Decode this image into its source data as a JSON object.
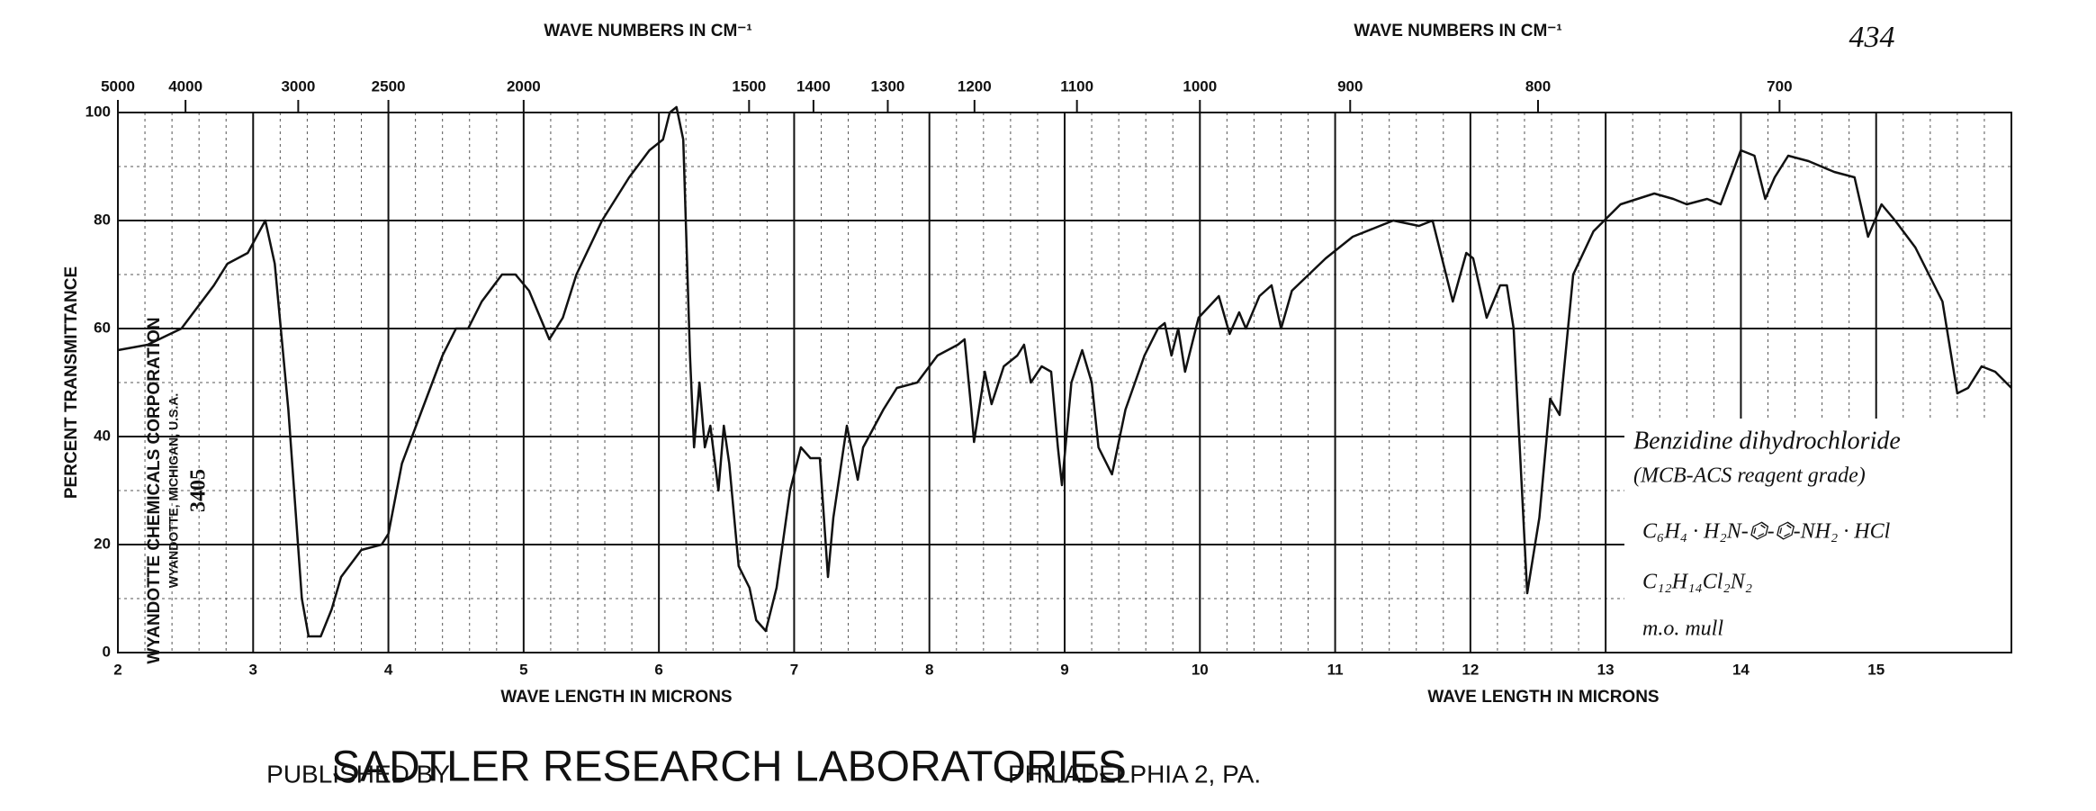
{
  "chart_data": {
    "type": "line",
    "top_axis_label_left": "WAVE NUMBERS IN CM⁻¹",
    "top_axis_label_right": "WAVE NUMBERS IN CM⁻¹",
    "chart_number": "434",
    "y_label": "PERCENT TRANSMITTANCE",
    "x_label_left": "WAVE LENGTH IN MICRONS",
    "x_label_right": "WAVE LENGTH IN MICRONS",
    "source_lines": [
      "WYANDOTTE CHEMICALS CORPORATION",
      "WYANDOTTE, MICHIGAN, U.S.A.",
      "3405"
    ],
    "annotations": [
      "Benzidine dihydrochloride",
      "(MCB-ACS reagent grade)",
      "C₆H₄ · H₂N-⌬-⌬-NH₂ · HCl",
      "C₁₂H₁₄Cl₂N₂",
      "m.o. mull"
    ],
    "footer": {
      "left": "PUBLISHED BY",
      "center": "SADTLER RESEARCH LABORATORIES",
      "right": "PHILADELPHIA 2, PA."
    },
    "color": "#111111",
    "grid": true,
    "xlim": [
      2,
      16
    ],
    "ylim": [
      0,
      100
    ],
    "xticks": [
      2,
      3,
      4,
      5,
      6,
      7,
      8,
      9,
      10,
      11,
      12,
      13,
      14,
      15
    ],
    "yticks": [
      0,
      20,
      40,
      60,
      80,
      100
    ],
    "x2ticks": [
      5000,
      4000,
      3000,
      2500,
      2000,
      1500,
      1400,
      1300,
      1200,
      1100,
      1000,
      900,
      800,
      700
    ],
    "x": [
      2.0,
      2.22,
      2.47,
      2.71,
      2.81,
      2.96,
      3.09,
      3.16,
      3.26,
      3.36,
      3.41,
      3.5,
      3.58,
      3.65,
      3.8,
      3.95,
      4.0,
      4.1,
      4.25,
      4.4,
      4.5,
      4.59,
      4.69,
      4.84,
      4.94,
      5.04,
      5.19,
      5.29,
      5.39,
      5.58,
      5.78,
      5.93,
      6.03,
      6.08,
      6.13,
      6.18,
      6.23,
      6.26,
      6.3,
      6.34,
      6.38,
      6.41,
      6.44,
      6.48,
      6.52,
      6.59,
      6.67,
      6.72,
      6.79,
      6.87,
      6.97,
      7.05,
      7.12,
      7.19,
      7.25,
      7.29,
      7.39,
      7.47,
      7.51,
      7.66,
      7.76,
      7.91,
      8.06,
      8.21,
      8.26,
      8.31,
      8.33,
      8.41,
      8.46,
      8.55,
      8.65,
      8.7,
      8.75,
      8.83,
      8.9,
      8.95,
      8.98,
      9.05,
      9.13,
      9.2,
      9.25,
      9.35,
      9.45,
      9.59,
      9.69,
      9.74,
      9.79,
      9.84,
      9.89,
      9.99,
      10.14,
      10.22,
      10.29,
      10.34,
      10.44,
      10.53,
      10.6,
      10.68,
      10.93,
      11.13,
      11.43,
      11.62,
      11.72,
      11.82,
      11.87,
      11.97,
      12.02,
      12.12,
      12.22,
      12.27,
      12.32,
      12.42,
      12.51,
      12.59,
      12.66,
      12.76,
      12.91,
      13.11,
      13.36,
      13.5,
      13.6,
      13.75,
      13.85,
      14.0,
      14.1,
      14.18,
      14.25,
      14.35,
      14.5,
      14.69,
      14.84,
      14.94,
      15.04,
      15.14,
      15.29,
      15.49,
      15.6,
      15.68,
      15.78,
      15.88,
      16.0
    ],
    "values": [
      56,
      57,
      60,
      68,
      72,
      74,
      80,
      72,
      45,
      10,
      3,
      3,
      8,
      14,
      19,
      20,
      22,
      35,
      45,
      55,
      60,
      60,
      65,
      70,
      70,
      67,
      58,
      62,
      70,
      80,
      88,
      93,
      95,
      100,
      101,
      95,
      55,
      38,
      50,
      38,
      42,
      36,
      30,
      42,
      35,
      16,
      12,
      6,
      4,
      12,
      30,
      38,
      36,
      36,
      14,
      25,
      42,
      32,
      38,
      45,
      49,
      50,
      55,
      57,
      58,
      45,
      39,
      52,
      46,
      53,
      55,
      57,
      50,
      53,
      52,
      38,
      31,
      50,
      56,
      50,
      38,
      33,
      45,
      55,
      60,
      61,
      55,
      60,
      52,
      62,
      66,
      59,
      63,
      60,
      66,
      68,
      60,
      67,
      73,
      77,
      80,
      79,
      80,
      70,
      65,
      74,
      73,
      62,
      68,
      68,
      60,
      11,
      25,
      47,
      44,
      70,
      78,
      83,
      85,
      84,
      83,
      84,
      83,
      93,
      92,
      84,
      88,
      92,
      91,
      89,
      88,
      77,
      83,
      80,
      75,
      65,
      48,
      49,
      53,
      52,
      49
    ]
  }
}
